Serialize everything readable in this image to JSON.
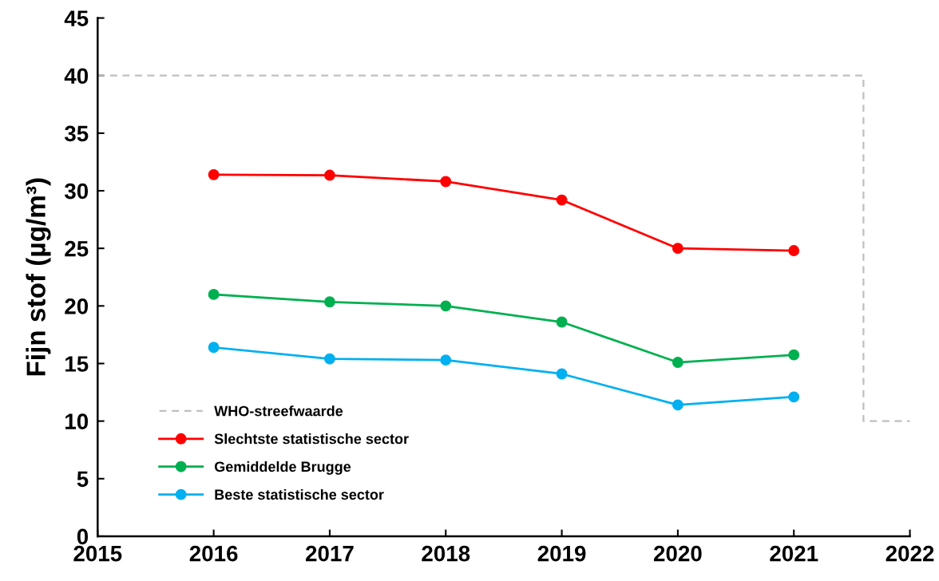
{
  "chart_data": {
    "type": "line",
    "ylabel": "Fijn stof (µg/m³)",
    "xlim": [
      2015,
      2022
    ],
    "xticks": [
      2015,
      2016,
      2017,
      2018,
      2019,
      2020,
      2021,
      2022
    ],
    "ylim": [
      0,
      45
    ],
    "yticks": [
      0,
      5,
      10,
      15,
      20,
      25,
      30,
      35,
      40,
      45
    ],
    "x": [
      2016,
      2017,
      2018,
      2019,
      2020,
      2021
    ],
    "grid": false,
    "legend": "bottom left",
    "marker": "circle",
    "series": [
      {
        "name": "WHO-streefwaarde",
        "color": "#bfbfbf",
        "x": [
          2015,
          2021.6,
          2021.6,
          2022
        ],
        "values": [
          40,
          40,
          10,
          10
        ],
        "line_style": "dashed",
        "marker": "none"
      },
      {
        "name": "Slechtste statistische sector",
        "color": "#ff0000",
        "values": [
          31.4,
          31.35,
          30.8,
          29.2,
          25.0,
          24.8
        ]
      },
      {
        "name": "Gemiddelde Brugge",
        "color": "#00b050",
        "values": [
          21.0,
          20.35,
          20.0,
          18.6,
          15.1,
          15.75
        ]
      },
      {
        "name": "Beste statistische sector",
        "color": "#00b0f0",
        "values": [
          16.4,
          15.4,
          15.3,
          14.1,
          11.4,
          12.1
        ]
      }
    ]
  }
}
